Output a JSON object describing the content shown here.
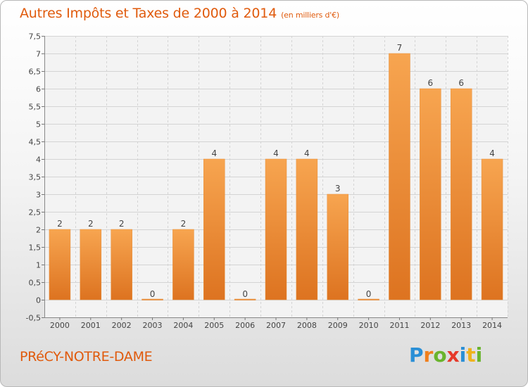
{
  "title": "Autres Impôts et Taxes de 2000 à 2014",
  "unit": "(en milliers d'€)",
  "commune": "PRéCY-NOTRE-DAME",
  "logo": {
    "letters": [
      "P",
      "r",
      "o",
      "x",
      "i",
      "t",
      "i"
    ],
    "colors": [
      "#2a8fd6",
      "#f07f1c",
      "#6ab42d",
      "#e63a2a",
      "#2a8fd6",
      "#f0b21c",
      "#6ab42d"
    ]
  },
  "colors": {
    "accent": "#e05a0c",
    "bar_top": "#f7a550",
    "bar_bottom": "#dd7320"
  },
  "chart_data": {
    "type": "bar",
    "categories": [
      "2000",
      "2001",
      "2002",
      "2003",
      "2004",
      "2005",
      "2006",
      "2007",
      "2008",
      "2009",
      "2010",
      "2011",
      "2012",
      "2013",
      "2014"
    ],
    "values": [
      2,
      2,
      2,
      0,
      2,
      4,
      0,
      4,
      4,
      3,
      0,
      7,
      6,
      6,
      4
    ],
    "ylim": [
      -0.5,
      7.5
    ],
    "yticks": [
      "-0,5",
      "0",
      "0,5",
      "1",
      "1,5",
      "2",
      "2,5",
      "3",
      "3,5",
      "4",
      "4,5",
      "5",
      "5,5",
      "6",
      "6,5",
      "7",
      "7,5"
    ],
    "grid": true,
    "title": "Autres Impôts et Taxes de 2000 à 2014",
    "xlabel": "",
    "ylabel": ""
  }
}
